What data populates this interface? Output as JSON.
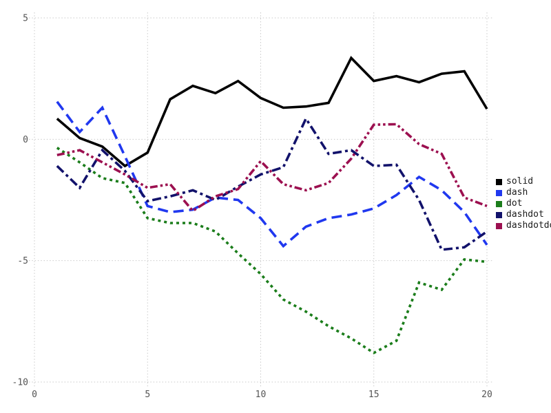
{
  "chart_data": {
    "type": "line",
    "title": "",
    "xlabel": "",
    "ylabel": "",
    "xlim": [
      0,
      20
    ],
    "ylim": [
      -10,
      5
    ],
    "x_ticks": [
      0,
      5,
      10,
      15,
      20
    ],
    "x_tick_labels": [
      "0",
      "5",
      "10",
      "15",
      "20"
    ],
    "y_ticks": [
      5,
      0,
      -5,
      -10
    ],
    "y_tick_labels": [
      "5",
      "0",
      "-5",
      "-10"
    ],
    "grid": true,
    "grid_style": "dotted",
    "legend_position": "right",
    "tick_color": "#545454",
    "grid_color": "#c9c9c9",
    "background_color": "#ffffff",
    "x": [
      1,
      2,
      3,
      4,
      5,
      6,
      7,
      8,
      9,
      10,
      11,
      12,
      13,
      14,
      15,
      16,
      17,
      18,
      19,
      20
    ],
    "series": [
      {
        "name": "solid",
        "color": "#000000",
        "dash": "solid",
        "values": [
          0.85,
          0.05,
          -0.3,
          -1.1,
          -0.55,
          1.65,
          2.2,
          1.9,
          2.4,
          1.7,
          1.3,
          1.35,
          1.5,
          3.35,
          2.4,
          2.6,
          2.35,
          2.7,
          2.8,
          1.25
        ]
      },
      {
        "name": "dash",
        "color": "#2038ef",
        "dash": "dash",
        "values": [
          1.55,
          0.3,
          1.3,
          -0.7,
          -2.75,
          -3.0,
          -2.9,
          -2.4,
          -2.5,
          -3.25,
          -4.4,
          -3.6,
          -3.25,
          -3.1,
          -2.85,
          -2.3,
          -1.55,
          -2.1,
          -3.0,
          -4.35
        ]
      },
      {
        "name": "dot",
        "color": "#1b7d1b",
        "dash": "dot",
        "values": [
          -0.35,
          -0.95,
          -1.6,
          -1.8,
          -3.25,
          -3.45,
          -3.45,
          -3.8,
          -4.7,
          -5.55,
          -6.6,
          -7.1,
          -7.7,
          -8.2,
          -8.8,
          -8.3,
          -5.9,
          -6.2,
          -4.95,
          -5.05
        ]
      },
      {
        "name": "dashdot",
        "color": "#12126b",
        "dash": "dashdot",
        "values": [
          -1.1,
          -2.0,
          -0.45,
          -1.3,
          -2.55,
          -2.35,
          -2.1,
          -2.5,
          -1.95,
          -1.45,
          -1.15,
          0.85,
          -0.6,
          -0.45,
          -1.1,
          -1.05,
          -2.5,
          -4.55,
          -4.45,
          -3.8
        ]
      },
      {
        "name": "dashdotdot",
        "color": "#9c1050",
        "dash": "dashdotdot",
        "values": [
          -0.65,
          -0.45,
          -0.95,
          -1.45,
          -2.0,
          -1.85,
          -2.95,
          -2.35,
          -2.05,
          -0.9,
          -1.85,
          -2.1,
          -1.8,
          -0.8,
          0.6,
          0.62,
          -0.2,
          -0.6,
          -2.4,
          -2.75
        ]
      }
    ]
  }
}
